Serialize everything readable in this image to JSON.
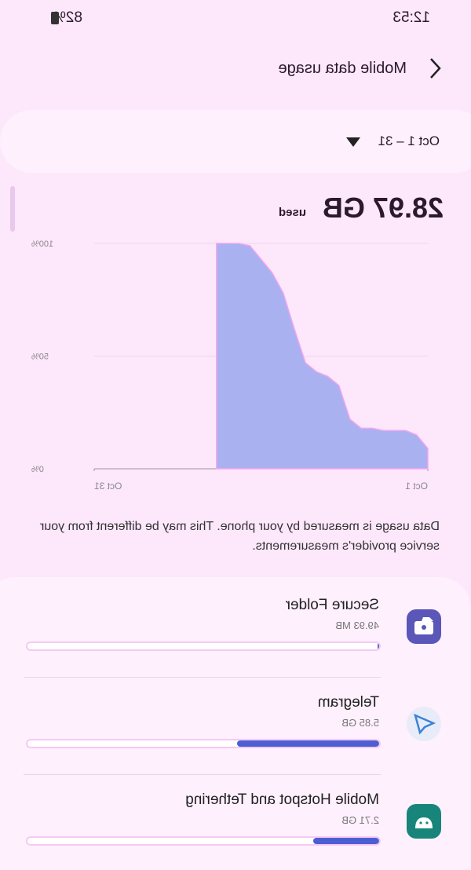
{
  "status_bar": {
    "time": "12:53",
    "battery": "82%"
  },
  "header": {
    "title": "Mobile data usage"
  },
  "date_range": "Oct 1 – 31",
  "total": {
    "amount": "28.97 GB",
    "caption": "used"
  },
  "chart_data": {
    "type": "area",
    "color": "#aab1f1",
    "x": [
      1,
      2,
      3,
      4,
      5,
      6,
      7,
      8,
      9,
      10,
      11,
      12,
      13,
      14,
      15,
      16,
      17,
      18,
      19,
      20
    ],
    "values": [
      9,
      15,
      17,
      17,
      17,
      18,
      18,
      22,
      37,
      41,
      43,
      47,
      62,
      78,
      87,
      93,
      99,
      100,
      100,
      100
    ],
    "xlim": [
      1,
      31
    ],
    "xticks": [
      {
        "value": 1,
        "label": "Oct 1"
      },
      {
        "value": 31,
        "label": "Oct 31"
      }
    ],
    "ylim": [
      0,
      100
    ],
    "yticks": [
      {
        "value": 0,
        "label": "0%"
      },
      {
        "value": 50,
        "label": "50%"
      },
      {
        "value": 100,
        "label": "100%"
      }
    ],
    "grid": true
  },
  "note": "Data usage is measured by your phone. This may be different from your service provider's measurements.",
  "apps": [
    {
      "name": "Secure Folder",
      "usage": 0.04993,
      "usage_label": "49.93 MB"
    },
    {
      "name": "Telegram",
      "usage": 5.85,
      "usage_label": "5.85 GB"
    },
    {
      "name": "Mobile Hotspot and Tethering",
      "usage": 2.71,
      "usage_label": "2.71 GB"
    }
  ]
}
